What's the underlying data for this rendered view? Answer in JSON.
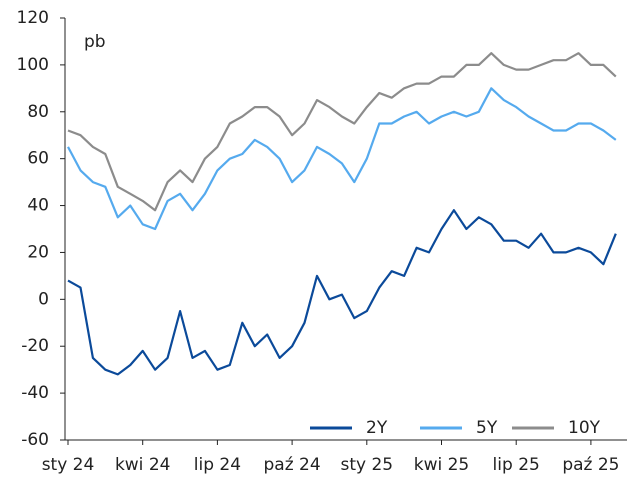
{
  "chart_data": {
    "type": "line",
    "annotation": "pb",
    "categories": [
      "sty 24",
      null,
      null,
      null,
      null,
      null,
      "kwi 24",
      null,
      null,
      null,
      null,
      null,
      "lip 24",
      null,
      null,
      null,
      null,
      null,
      "paź 24",
      null,
      null,
      null,
      null,
      null,
      "sty 25",
      null,
      null,
      null,
      null,
      null,
      "kwi 25",
      null,
      null,
      null,
      null,
      null,
      "lip 25",
      null,
      null,
      null,
      null,
      null,
      "paź 25",
      null,
      null
    ],
    "series": [
      {
        "name": "2Y",
        "color": "#0b4a9a",
        "values": [
          8,
          5,
          -25,
          -30,
          -32,
          -28,
          -22,
          -30,
          -25,
          -5,
          -25,
          -22,
          -30,
          -28,
          -10,
          -20,
          -15,
          -25,
          -20,
          -10,
          10,
          0,
          2,
          -8,
          -5,
          5,
          12,
          10,
          22,
          20,
          30,
          38,
          30,
          35,
          32,
          25,
          25,
          22,
          28,
          20,
          20,
          22,
          20,
          15,
          28
        ]
      },
      {
        "name": "5Y",
        "color": "#55aaee",
        "values": [
          65,
          55,
          50,
          48,
          35,
          40,
          32,
          30,
          42,
          45,
          38,
          45,
          55,
          60,
          62,
          68,
          65,
          60,
          50,
          55,
          65,
          62,
          58,
          50,
          60,
          75,
          75,
          78,
          80,
          75,
          78,
          80,
          78,
          80,
          90,
          85,
          82,
          78,
          75,
          72,
          72,
          75,
          75,
          72,
          68
        ]
      },
      {
        "name": "10Y",
        "color": "#8c8c8c",
        "values": [
          72,
          70,
          65,
          62,
          48,
          45,
          42,
          38,
          50,
          55,
          50,
          60,
          65,
          75,
          78,
          82,
          82,
          78,
          70,
          75,
          85,
          82,
          78,
          75,
          82,
          88,
          86,
          90,
          92,
          92,
          95,
          95,
          100,
          100,
          105,
          100,
          98,
          98,
          100,
          102,
          102,
          105,
          100,
          100,
          95
        ]
      }
    ],
    "ylim": [
      -60,
      120
    ],
    "yticks": [
      -60,
      -40,
      -20,
      0,
      20,
      40,
      60,
      80,
      100,
      120
    ],
    "legend": "bottom-right"
  }
}
